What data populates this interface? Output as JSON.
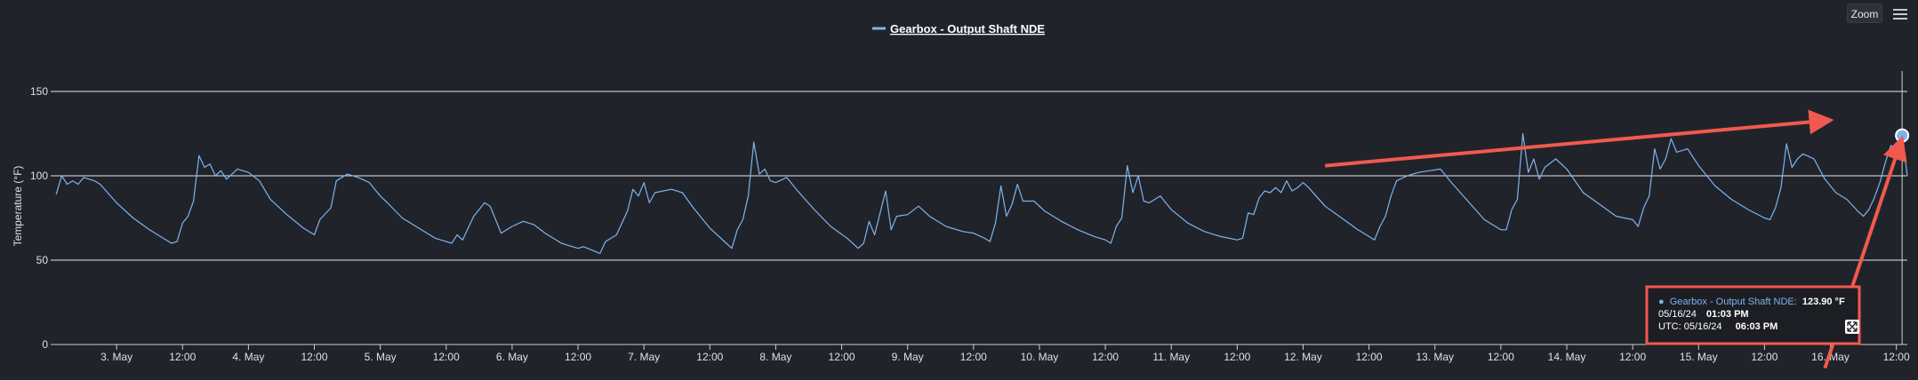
{
  "chart_data": {
    "type": "line",
    "title": "",
    "legend": {
      "items": [
        "Gearbox - Output Shaft NDE"
      ],
      "placement": "top-center"
    },
    "ylabel": "Temperature (°F)",
    "ylim": [
      0,
      150
    ],
    "yticks": [
      "0",
      "50",
      "100",
      "150"
    ],
    "xlim": [
      "2024-05-02 12:00",
      "2024-05-16 14:00"
    ],
    "xticks": [
      {
        "t": "2024-05-03 00:00",
        "label": "3. May"
      },
      {
        "t": "2024-05-03 12:00",
        "label": "12:00"
      },
      {
        "t": "2024-05-04 00:00",
        "label": "4. May"
      },
      {
        "t": "2024-05-04 12:00",
        "label": "12:00"
      },
      {
        "t": "2024-05-05 00:00",
        "label": "5. May"
      },
      {
        "t": "2024-05-05 12:00",
        "label": "12:00"
      },
      {
        "t": "2024-05-06 00:00",
        "label": "6. May"
      },
      {
        "t": "2024-05-06 12:00",
        "label": "12:00"
      },
      {
        "t": "2024-05-07 00:00",
        "label": "7. May"
      },
      {
        "t": "2024-05-07 12:00",
        "label": "12:00"
      },
      {
        "t": "2024-05-08 00:00",
        "label": "8. May"
      },
      {
        "t": "2024-05-08 12:00",
        "label": "12:00"
      },
      {
        "t": "2024-05-09 00:00",
        "label": "9. May"
      },
      {
        "t": "2024-05-09 12:00",
        "label": "12:00"
      },
      {
        "t": "2024-05-10 00:00",
        "label": "10. May"
      },
      {
        "t": "2024-05-10 12:00",
        "label": "12:00"
      },
      {
        "t": "2024-05-11 00:00",
        "label": "11. May"
      },
      {
        "t": "2024-05-11 12:00",
        "label": "12:00"
      },
      {
        "t": "2024-05-12 00:00",
        "label": "12. May"
      },
      {
        "t": "2024-05-12 12:00",
        "label": "12:00"
      },
      {
        "t": "2024-05-13 00:00",
        "label": "13. May"
      },
      {
        "t": "2024-05-13 12:00",
        "label": "12:00"
      },
      {
        "t": "2024-05-14 00:00",
        "label": "14. May"
      },
      {
        "t": "2024-05-14 12:00",
        "label": "12:00"
      },
      {
        "t": "2024-05-15 00:00",
        "label": "15. May"
      },
      {
        "t": "2024-05-15 12:00",
        "label": "12:00"
      },
      {
        "t": "2024-05-16 00:00",
        "label": "16. May"
      },
      {
        "t": "2024-05-16 12:00",
        "label": "12:00"
      }
    ],
    "grid": true,
    "series": [
      {
        "name": "Gearbox - Output Shaft NDE",
        "color": "#7cb5ec",
        "points": [
          [
            "2024-05-02 13:00",
            89
          ],
          [
            "2024-05-02 14:00",
            100
          ],
          [
            "2024-05-02 15:00",
            95
          ],
          [
            "2024-05-02 16:00",
            97
          ],
          [
            "2024-05-02 17:00",
            95
          ],
          [
            "2024-05-02 18:00",
            99
          ],
          [
            "2024-05-02 19:00",
            98
          ],
          [
            "2024-05-02 20:00",
            97
          ],
          [
            "2024-05-02 21:00",
            95
          ],
          [
            "2024-05-03 00:00",
            84
          ],
          [
            "2024-05-03 03:00",
            75
          ],
          [
            "2024-05-03 06:00",
            68
          ],
          [
            "2024-05-03 09:00",
            62
          ],
          [
            "2024-05-03 10:00",
            60
          ],
          [
            "2024-05-03 11:00",
            61
          ],
          [
            "2024-05-03 12:00",
            72
          ],
          [
            "2024-05-03 13:00",
            76
          ],
          [
            "2024-05-03 14:00",
            85
          ],
          [
            "2024-05-03 15:00",
            112
          ],
          [
            "2024-05-03 16:00",
            105
          ],
          [
            "2024-05-03 17:00",
            107
          ],
          [
            "2024-05-03 18:00",
            100
          ],
          [
            "2024-05-03 19:00",
            103
          ],
          [
            "2024-05-03 20:00",
            98
          ],
          [
            "2024-05-03 22:00",
            104
          ],
          [
            "2024-05-04 00:00",
            102
          ],
          [
            "2024-05-04 02:00",
            97
          ],
          [
            "2024-05-04 04:00",
            86
          ],
          [
            "2024-05-04 07:00",
            77
          ],
          [
            "2024-05-04 10:00",
            69
          ],
          [
            "2024-05-04 12:00",
            65
          ],
          [
            "2024-05-04 13:00",
            74
          ],
          [
            "2024-05-04 15:00",
            81
          ],
          [
            "2024-05-04 16:00",
            97
          ],
          [
            "2024-05-04 18:00",
            101
          ],
          [
            "2024-05-04 20:00",
            99
          ],
          [
            "2024-05-04 22:00",
            96
          ],
          [
            "2024-05-05 00:00",
            88
          ],
          [
            "2024-05-05 01:00",
            85
          ],
          [
            "2024-05-05 04:00",
            75
          ],
          [
            "2024-05-05 07:00",
            69
          ],
          [
            "2024-05-05 10:00",
            63
          ],
          [
            "2024-05-05 12:00",
            61
          ],
          [
            "2024-05-05 13:00",
            60
          ],
          [
            "2024-05-05 14:00",
            65
          ],
          [
            "2024-05-05 15:00",
            62
          ],
          [
            "2024-05-05 17:00",
            76
          ],
          [
            "2024-05-05 19:00",
            84
          ],
          [
            "2024-05-05 20:00",
            82
          ],
          [
            "2024-05-05 22:00",
            66
          ],
          [
            "2024-05-06 00:00",
            70
          ],
          [
            "2024-05-06 02:00",
            73
          ],
          [
            "2024-05-06 04:00",
            71
          ],
          [
            "2024-05-06 06:00",
            66
          ],
          [
            "2024-05-06 09:00",
            60
          ],
          [
            "2024-05-06 12:00",
            57
          ],
          [
            "2024-05-06 13:00",
            58
          ],
          [
            "2024-05-06 16:00",
            54
          ],
          [
            "2024-05-06 17:00",
            61
          ],
          [
            "2024-05-06 19:00",
            65
          ],
          [
            "2024-05-06 21:00",
            79
          ],
          [
            "2024-05-06 22:00",
            92
          ],
          [
            "2024-05-06 23:00",
            88
          ],
          [
            "2024-05-07 00:00",
            96
          ],
          [
            "2024-05-07 01:00",
            84
          ],
          [
            "2024-05-07 02:00",
            90
          ],
          [
            "2024-05-07 05:00",
            92
          ],
          [
            "2024-05-07 07:00",
            90
          ],
          [
            "2024-05-07 09:00",
            81
          ],
          [
            "2024-05-07 12:00",
            69
          ],
          [
            "2024-05-07 15:00",
            60
          ],
          [
            "2024-05-07 16:00",
            57
          ],
          [
            "2024-05-07 17:00",
            68
          ],
          [
            "2024-05-07 18:00",
            74
          ],
          [
            "2024-05-07 19:00",
            88
          ],
          [
            "2024-05-07 20:00",
            120
          ],
          [
            "2024-05-07 21:00",
            101
          ],
          [
            "2024-05-07 22:00",
            104
          ],
          [
            "2024-05-07 23:00",
            97
          ],
          [
            "2024-05-08 00:00",
            96
          ],
          [
            "2024-05-08 02:00",
            99
          ],
          [
            "2024-05-08 04:00",
            91
          ],
          [
            "2024-05-08 07:00",
            80
          ],
          [
            "2024-05-08 10:00",
            70
          ],
          [
            "2024-05-08 13:00",
            63
          ],
          [
            "2024-05-08 15:00",
            57
          ],
          [
            "2024-05-08 16:00",
            60
          ],
          [
            "2024-05-08 17:00",
            73
          ],
          [
            "2024-05-08 18:00",
            65
          ],
          [
            "2024-05-08 19:00",
            78
          ],
          [
            "2024-05-08 20:00",
            91
          ],
          [
            "2024-05-08 21:00",
            68
          ],
          [
            "2024-05-08 22:00",
            76
          ],
          [
            "2024-05-09 00:00",
            77
          ],
          [
            "2024-05-09 02:00",
            82
          ],
          [
            "2024-05-09 04:00",
            76
          ],
          [
            "2024-05-09 07:00",
            70
          ],
          [
            "2024-05-09 10:00",
            67
          ],
          [
            "2024-05-09 12:00",
            66
          ],
          [
            "2024-05-09 14:00",
            63
          ],
          [
            "2024-05-09 15:00",
            61
          ],
          [
            "2024-05-09 16:00",
            72
          ],
          [
            "2024-05-09 17:00",
            94
          ],
          [
            "2024-05-09 18:00",
            76
          ],
          [
            "2024-05-09 19:00",
            83
          ],
          [
            "2024-05-09 20:00",
            95
          ],
          [
            "2024-05-09 21:00",
            85
          ],
          [
            "2024-05-09 23:00",
            85
          ],
          [
            "2024-05-10 01:00",
            79
          ],
          [
            "2024-05-10 04:00",
            73
          ],
          [
            "2024-05-10 07:00",
            68
          ],
          [
            "2024-05-10 10:00",
            64
          ],
          [
            "2024-05-10 12:00",
            62
          ],
          [
            "2024-05-10 13:00",
            60
          ],
          [
            "2024-05-10 14:00",
            70
          ],
          [
            "2024-05-10 15:00",
            75
          ],
          [
            "2024-05-10 16:00",
            106
          ],
          [
            "2024-05-10 17:00",
            90
          ],
          [
            "2024-05-10 18:00",
            100
          ],
          [
            "2024-05-10 19:00",
            85
          ],
          [
            "2024-05-10 20:00",
            84
          ],
          [
            "2024-05-10 22:00",
            88
          ],
          [
            "2024-05-11 00:00",
            80
          ],
          [
            "2024-05-11 03:00",
            72
          ],
          [
            "2024-05-11 06:00",
            67
          ],
          [
            "2024-05-11 09:00",
            64
          ],
          [
            "2024-05-11 12:00",
            62
          ],
          [
            "2024-05-11 13:00",
            63
          ],
          [
            "2024-05-11 14:00",
            78
          ],
          [
            "2024-05-11 15:00",
            77
          ],
          [
            "2024-05-11 16:00",
            87
          ],
          [
            "2024-05-11 17:00",
            91
          ],
          [
            "2024-05-11 18:00",
            90
          ],
          [
            "2024-05-11 19:00",
            93
          ],
          [
            "2024-05-11 20:00",
            90
          ],
          [
            "2024-05-11 21:00",
            97
          ],
          [
            "2024-05-11 22:00",
            91
          ],
          [
            "2024-05-11 23:00",
            93
          ],
          [
            "2024-05-12 00:00",
            96
          ],
          [
            "2024-05-12 01:00",
            93
          ],
          [
            "2024-05-12 04:00",
            82
          ],
          [
            "2024-05-12 07:00",
            75
          ],
          [
            "2024-05-12 10:00",
            68
          ],
          [
            "2024-05-12 12:00",
            64
          ],
          [
            "2024-05-12 13:00",
            62
          ],
          [
            "2024-05-12 14:00",
            70
          ],
          [
            "2024-05-12 15:00",
            76
          ],
          [
            "2024-05-12 16:00",
            88
          ],
          [
            "2024-05-12 17:00",
            97
          ],
          [
            "2024-05-12 19:00",
            100
          ],
          [
            "2024-05-12 21:00",
            102
          ],
          [
            "2024-05-12 23:00",
            103
          ],
          [
            "2024-05-13 01:00",
            104
          ],
          [
            "2024-05-13 03:00",
            96
          ],
          [
            "2024-05-13 06:00",
            85
          ],
          [
            "2024-05-13 09:00",
            74
          ],
          [
            "2024-05-13 12:00",
            68
          ],
          [
            "2024-05-13 13:00",
            68
          ],
          [
            "2024-05-13 14:00",
            80
          ],
          [
            "2024-05-13 15:00",
            86
          ],
          [
            "2024-05-13 16:00",
            125
          ],
          [
            "2024-05-13 17:00",
            102
          ],
          [
            "2024-05-13 18:00",
            110
          ],
          [
            "2024-05-13 19:00",
            98
          ],
          [
            "2024-05-13 20:00",
            105
          ],
          [
            "2024-05-13 22:00",
            110
          ],
          [
            "2024-05-14 00:00",
            104
          ],
          [
            "2024-05-14 03:00",
            90
          ],
          [
            "2024-05-14 06:00",
            83
          ],
          [
            "2024-05-14 09:00",
            76
          ],
          [
            "2024-05-14 12:00",
            74
          ],
          [
            "2024-05-14 13:00",
            70
          ],
          [
            "2024-05-14 14:00",
            81
          ],
          [
            "2024-05-14 15:00",
            88
          ],
          [
            "2024-05-14 16:00",
            116
          ],
          [
            "2024-05-14 17:00",
            104
          ],
          [
            "2024-05-14 18:00",
            110
          ],
          [
            "2024-05-14 19:00",
            122
          ],
          [
            "2024-05-14 20:00",
            114
          ],
          [
            "2024-05-14 22:00",
            116
          ],
          [
            "2024-05-15 00:00",
            106
          ],
          [
            "2024-05-15 03:00",
            94
          ],
          [
            "2024-05-15 06:00",
            86
          ],
          [
            "2024-05-15 09:00",
            80
          ],
          [
            "2024-05-15 12:00",
            75
          ],
          [
            "2024-05-15 13:00",
            74
          ],
          [
            "2024-05-15 14:00",
            81
          ],
          [
            "2024-05-15 15:00",
            93
          ],
          [
            "2024-05-15 16:00",
            119
          ],
          [
            "2024-05-15 17:00",
            105
          ],
          [
            "2024-05-15 18:00",
            110
          ],
          [
            "2024-05-15 19:00",
            113
          ],
          [
            "2024-05-15 21:00",
            110
          ],
          [
            "2024-05-15 23:00",
            98
          ],
          [
            "2024-05-16 01:00",
            90
          ],
          [
            "2024-05-16 03:00",
            86
          ],
          [
            "2024-05-16 05:00",
            79
          ],
          [
            "2024-05-16 06:00",
            76
          ],
          [
            "2024-05-16 07:00",
            80
          ],
          [
            "2024-05-16 08:00",
            87
          ],
          [
            "2024-05-16 09:00",
            96
          ],
          [
            "2024-05-16 10:00",
            108
          ],
          [
            "2024-05-16 11:00",
            118
          ],
          [
            "2024-05-16 12:00",
            116
          ],
          [
            "2024-05-16 13:03",
            123.9
          ],
          [
            "2024-05-16 14:00",
            100
          ]
        ]
      }
    ],
    "highlight": {
      "t": "2024-05-16 13:03",
      "value": 123.9
    },
    "annotations": [
      {
        "type": "arrow",
        "from": [
          "2024-05-12 04:00",
          106
        ],
        "to": [
          "2024-05-16 00:00",
          133
        ]
      },
      {
        "type": "arrow",
        "from": [
          "2024-05-15 23:00",
          -14
        ],
        "to": [
          "2024-05-16 13:00",
          122
        ]
      }
    ]
  },
  "toolbar": {
    "zoom_label": "Zoom",
    "menu_icon": "hamburger-icon"
  },
  "tooltip": {
    "bullet": "●",
    "series_name": "Gearbox - Output Shaft NDE:",
    "value_text": "123.90 °F",
    "local_date": "05/16/24",
    "local_time": "01:03 PM",
    "utc_prefix": "UTC: 05/16/24",
    "utc_time": "06:03 PM",
    "expand_icon": "expand-icon"
  },
  "colors": {
    "background": "#21232b",
    "series": "#7cb5ec",
    "annotation": "#f05a4e",
    "grid": "#e6e6e6",
    "text": "#e0e0e0"
  }
}
